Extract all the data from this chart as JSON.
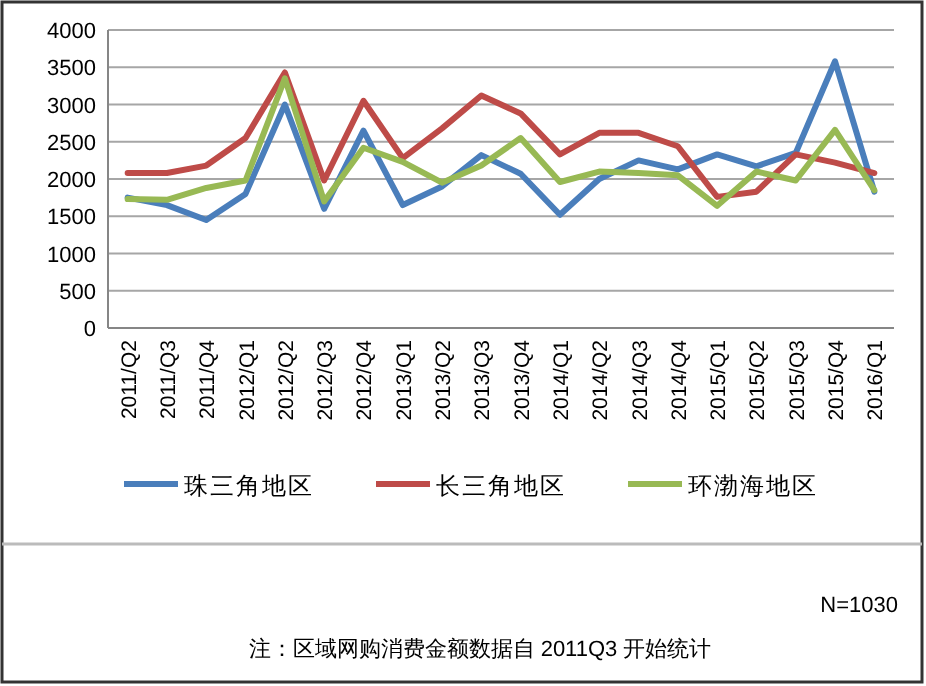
{
  "chart_data": {
    "type": "line",
    "categories": [
      "2011/Q2",
      "2011/Q3",
      "2011/Q4",
      "2012/Q1",
      "2012/Q2",
      "2012/Q3",
      "2012/Q4",
      "2013/Q1",
      "2013/Q2",
      "2013/Q3",
      "2013/Q4",
      "2014/Q1",
      "2014/Q2",
      "2014/Q3",
      "2014/Q4",
      "2015/Q1",
      "2015/Q2",
      "2015/Q3",
      "2015/Q4",
      "2016/Q1"
    ],
    "series": [
      {
        "name": "珠三角地区",
        "color": "#4a7ebb",
        "values": [
          1750,
          1650,
          1450,
          1800,
          3000,
          1600,
          2650,
          1650,
          1900,
          2320,
          2070,
          1520,
          2000,
          2250,
          2130,
          2330,
          2170,
          2350,
          3580,
          1830
        ]
      },
      {
        "name": "长三角地区",
        "color": "#be4b48",
        "values": [
          2080,
          2080,
          2180,
          2550,
          3430,
          1980,
          3050,
          2280,
          2680,
          3120,
          2880,
          2330,
          2620,
          2620,
          2440,
          1760,
          1830,
          2330,
          2220,
          2080
        ]
      },
      {
        "name": "环渤海地区",
        "color": "#98b954",
        "values": [
          1730,
          1720,
          1880,
          1980,
          3350,
          1700,
          2420,
          2230,
          1950,
          2180,
          2550,
          1960,
          2100,
          2080,
          2050,
          1640,
          2100,
          1980,
          2660,
          1850
        ]
      }
    ],
    "ylim": [
      0,
      4000
    ],
    "yticks": [
      0,
      500,
      1000,
      1500,
      2000,
      2500,
      3000,
      3500,
      4000
    ],
    "grid": "y",
    "legend": "bottom",
    "marker": "none",
    "line_style": "solid",
    "annotations": [
      "N=1030",
      "注：区域网购消费金额数据自 2011Q3 开始统计"
    ]
  }
}
